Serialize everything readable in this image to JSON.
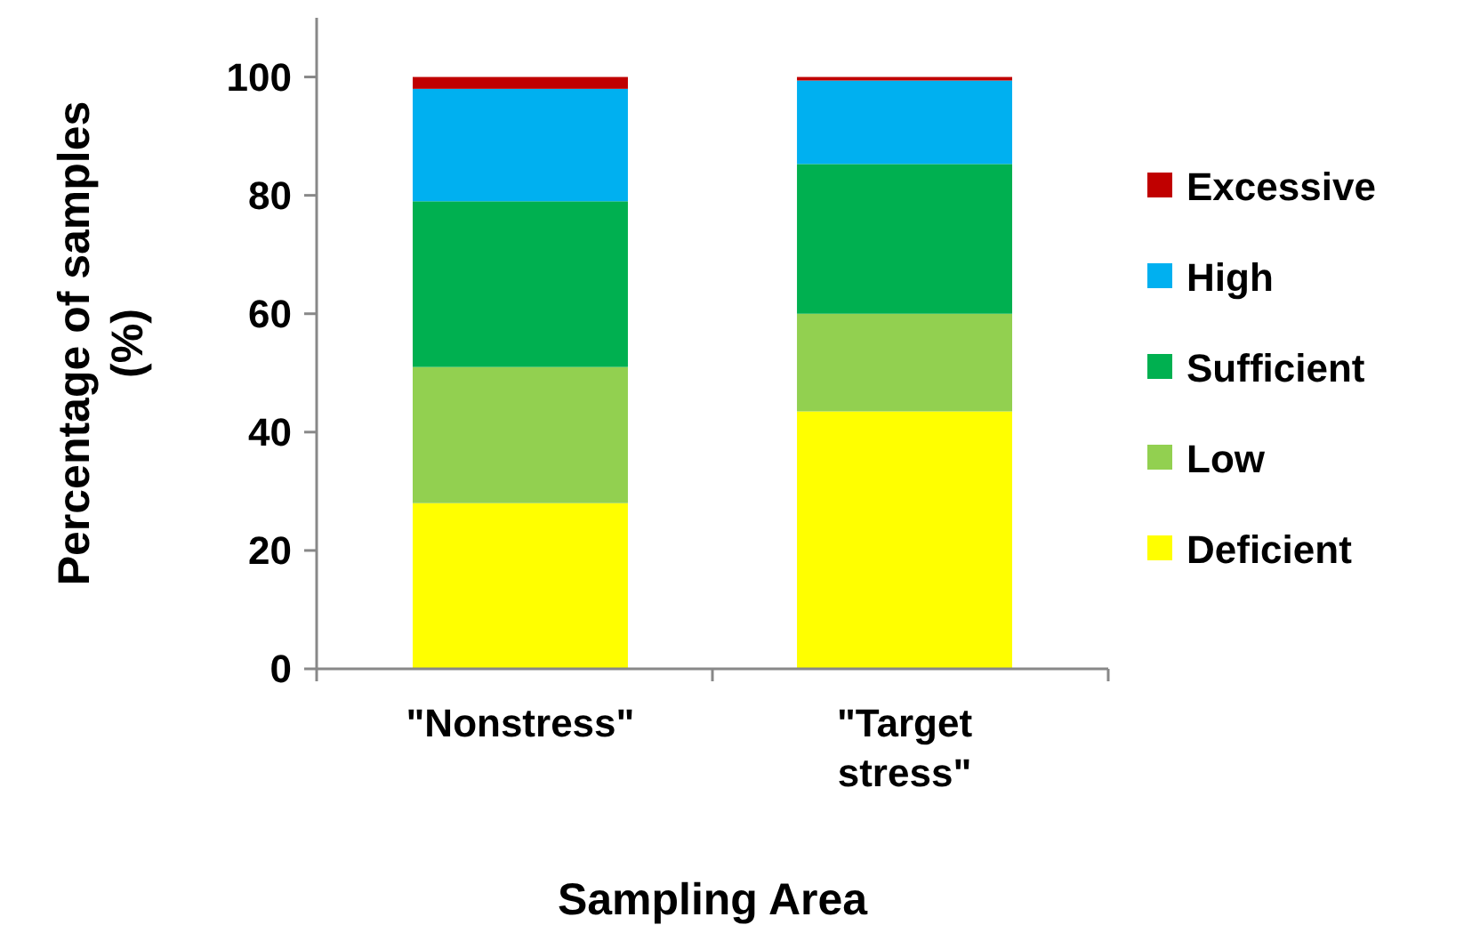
{
  "chart_data": {
    "type": "bar",
    "stacked": true,
    "xlabel": "Sampling Area",
    "ylabel": "Percentage of samples (%)",
    "categories": [
      "\"Nonstress\"",
      "\"Target stress\""
    ],
    "series": [
      {
        "name": "Deficient",
        "color": "#ffff00",
        "values": [
          28,
          43.5
        ]
      },
      {
        "name": "Low",
        "color": "#92d050",
        "values": [
          23,
          16.5
        ]
      },
      {
        "name": "Sufficient",
        "color": "#00b050",
        "values": [
          28,
          25.3
        ]
      },
      {
        "name": "High",
        "color": "#00b0f0",
        "values": [
          19,
          14.1
        ]
      },
      {
        "name": "Excessive",
        "color": "#c00000",
        "values": [
          2,
          0.6
        ]
      }
    ],
    "ylim": [
      0,
      110
    ],
    "yticks": [
      0,
      20,
      40,
      60,
      80,
      100
    ],
    "grid": false,
    "legend": "right"
  }
}
